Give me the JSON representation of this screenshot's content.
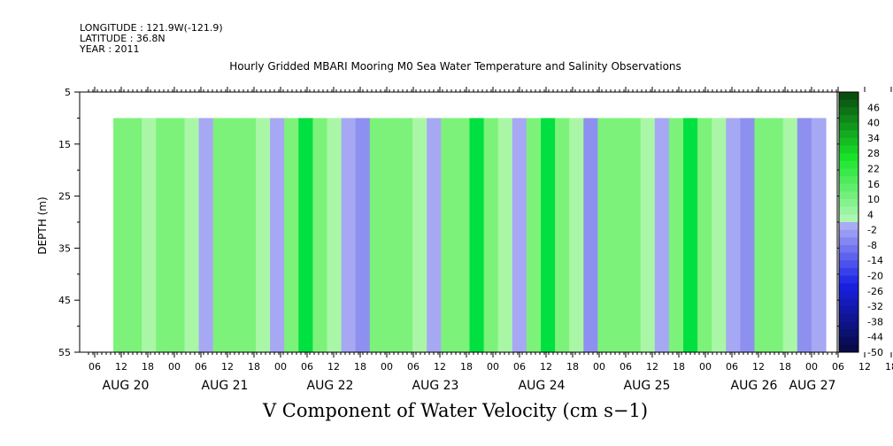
{
  "header": {
    "longitude": "LONGITUDE : 121.9W(-121.9)",
    "latitude": "LATITUDE : 36.8N",
    "year": "YEAR : 2011"
  },
  "chart_data": {
    "type": "heatmap",
    "title": "Hourly Gridded MBARI Mooring M0 Sea Water Temperature and Salinity Observations",
    "xlabel": "V Component of Water Velocity (cm s−1)",
    "ylabel": "DEPTH (m)",
    "ylim": [
      5,
      55
    ],
    "y_inverted": true,
    "y_ticks": [
      5,
      15,
      25,
      35,
      45,
      55
    ],
    "data_depth_range": [
      10,
      55
    ],
    "x_hour_ticks": [
      "06",
      "12",
      "18",
      "00",
      "06",
      "12",
      "18",
      "00",
      "06",
      "12",
      "18",
      "00",
      "06",
      "12",
      "18",
      "00",
      "06",
      "12",
      "18",
      "00",
      "06",
      "12",
      "18",
      "00",
      "06",
      "12",
      "18",
      "00",
      "06",
      "12",
      "18",
      "00"
    ],
    "x_day_labels": [
      "AUG 20",
      "AUG 21",
      "AUG 22",
      "AUG 23",
      "AUG 24",
      "AUG 25",
      "AUG 26",
      "AUG 27"
    ],
    "colorbar_labels": [
      "46",
      "40",
      "34",
      "28",
      "22",
      "16",
      "10",
      "4",
      "-2",
      "-8",
      "-14",
      "-20",
      "-26",
      "-32",
      "-38",
      "-44",
      "-50"
    ],
    "colorbar_range": [
      -50,
      52
    ],
    "colors": {
      "strong_positive": "#00e040",
      "positive": "#7cf27a",
      "weak_positive": "#a9f7a6",
      "weak_negative": "#a6a8f4",
      "negative": "#8e90ef"
    },
    "column_bands": [
      {
        "v": 10
      },
      {
        "v": 8
      },
      {
        "v": 4
      },
      {
        "v": 10
      },
      {
        "v": 12
      },
      {
        "v": 6
      },
      {
        "v": -4
      },
      {
        "v": 12
      },
      {
        "v": 14
      },
      {
        "v": 10
      },
      {
        "v": 4
      },
      {
        "v": -4
      },
      {
        "v": 10
      },
      {
        "v": 16
      },
      {
        "v": 12
      },
      {
        "v": 4
      },
      {
        "v": -2
      },
      {
        "v": -6
      },
      {
        "v": 8
      },
      {
        "v": 12
      },
      {
        "v": 14
      },
      {
        "v": 6
      },
      {
        "v": -4
      },
      {
        "v": 10
      },
      {
        "v": 14
      },
      {
        "v": 16
      },
      {
        "v": 8
      },
      {
        "v": 2
      },
      {
        "v": -4
      },
      {
        "v": 12
      },
      {
        "v": 16
      },
      {
        "v": 10
      },
      {
        "v": 4
      },
      {
        "v": -6
      },
      {
        "v": 10
      },
      {
        "v": 12
      },
      {
        "v": 8
      },
      {
        "v": 2
      },
      {
        "v": -4
      },
      {
        "v": 10
      },
      {
        "v": 18
      },
      {
        "v": 14
      },
      {
        "v": 6
      },
      {
        "v": -4
      },
      {
        "v": -8
      },
      {
        "v": 8
      },
      {
        "v": 12
      },
      {
        "v": 4
      },
      {
        "v": -6
      },
      {
        "v": -4
      }
    ]
  }
}
